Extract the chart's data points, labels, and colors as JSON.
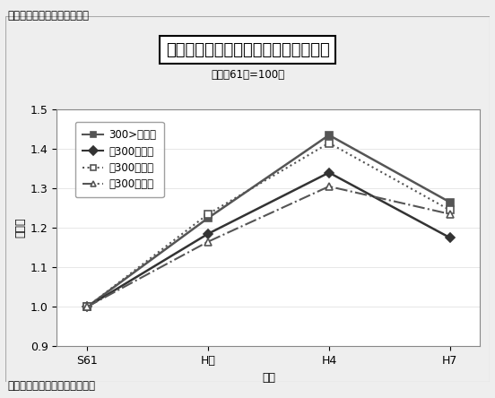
{
  "title_main": "製造品出荷額の推移（県別・規模別）",
  "title_sub": "（昭和61年=100）",
  "fig_label": "図－１　製造品出荷額の推移",
  "source": "資料：平成７年「工業統計表」",
  "xlabel": "年度",
  "ylabel": "伸び率",
  "xtick_labels": [
    "S61",
    "H元",
    "H4",
    "H7"
  ],
  "xtick_positions": [
    0,
    1,
    2,
    3
  ],
  "ylim": [
    0.9,
    1.5
  ],
  "yticks": [
    0.9,
    1.0,
    1.1,
    1.2,
    1.3,
    1.4,
    1.5
  ],
  "series": [
    {
      "label": "300>　愛知",
      "values": [
        1.0,
        1.225,
        1.435,
        1.265
      ],
      "color": "#555555",
      "linestyle": "solid",
      "marker": "s",
      "markerfill": "filled",
      "linewidth": 1.8
    },
    {
      "label": "＜300　愛知",
      "values": [
        1.0,
        1.185,
        1.34,
        1.175
      ],
      "color": "#333333",
      "linestyle": "solid",
      "marker": "D",
      "markerfill": "filled",
      "linewidth": 1.8
    },
    {
      "label": "＜300　岐阜",
      "values": [
        1.0,
        1.235,
        1.415,
        1.245
      ],
      "color": "#555555",
      "linestyle": "dotted",
      "marker": "s",
      "markerfill": "open",
      "linewidth": 1.5
    },
    {
      "label": "＜300　静岡",
      "values": [
        1.0,
        1.165,
        1.305,
        1.235
      ],
      "color": "#555555",
      "linestyle": "dashdot",
      "marker": "^",
      "markerfill": "open",
      "linewidth": 1.5
    }
  ],
  "legend_prefixes": [
    "■ 300>",
    "◆ <300",
    "□ <300",
    "△ <300"
  ],
  "legend_suffixes": [
    "　愛知",
    "　愛知",
    "　岐阜",
    "　静岡"
  ],
  "background_color": "#eeeeee",
  "plot_bg_color": "#ffffff",
  "outer_box_color": "#888888"
}
